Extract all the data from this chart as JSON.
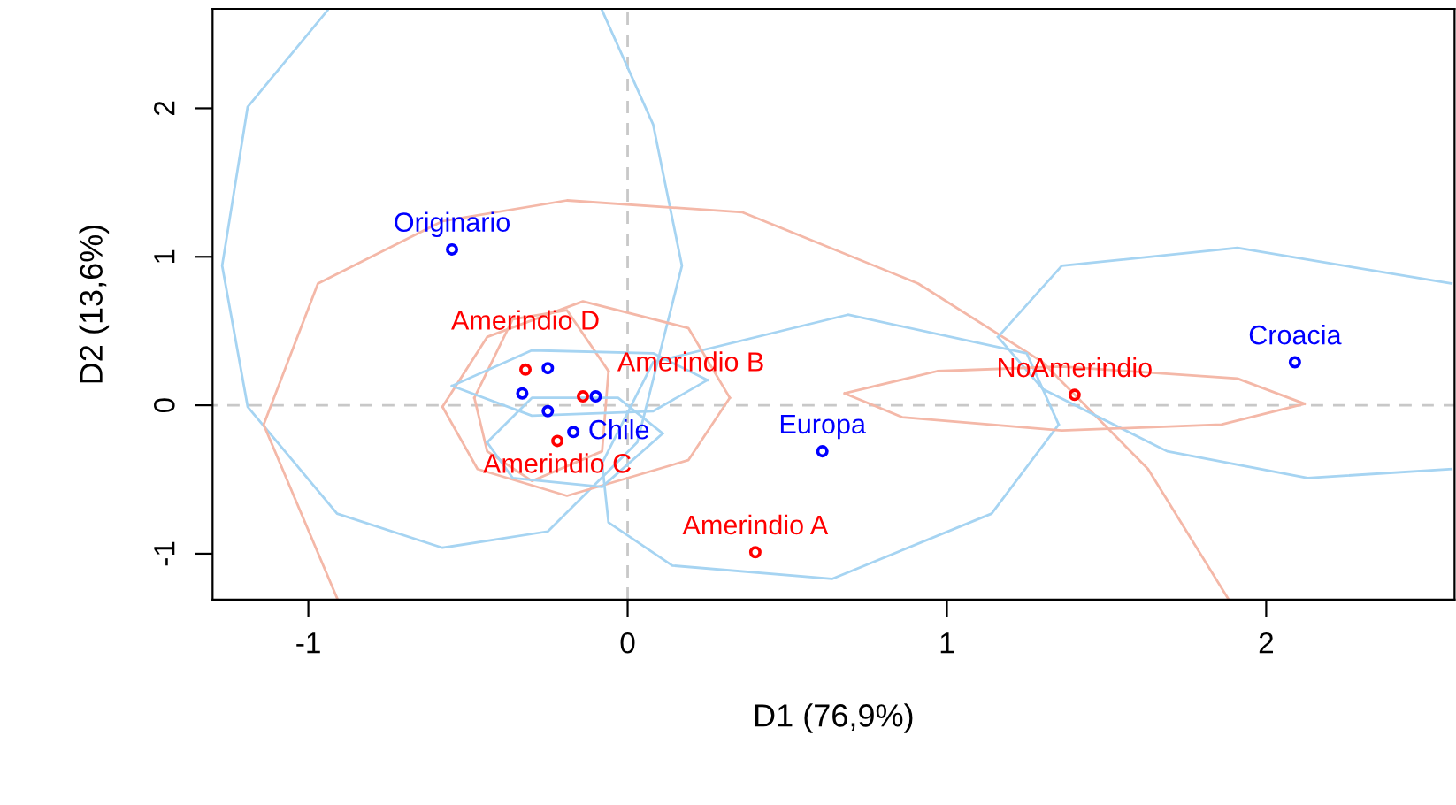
{
  "chart_data": {
    "type": "scatter",
    "xlabel": "D1 (76,9%)",
    "ylabel": "D2 (13,6%)",
    "xlim": [
      -1.3,
      2.59
    ],
    "ylim": [
      -1.31,
      2.67
    ],
    "xticks": [
      -1,
      0,
      1,
      2
    ],
    "yticks": [
      -1,
      0,
      1,
      2
    ],
    "grid": false,
    "marker": "circle",
    "ref_lines": [
      {
        "axis": "x",
        "value": 0,
        "color": "#c8c8c8",
        "line_style": "dashed"
      },
      {
        "axis": "y",
        "value": 0,
        "color": "#c8c8c8",
        "line_style": "dashed"
      }
    ],
    "series": [
      {
        "type": "line",
        "marker": "none",
        "color": "#a6d4f2",
        "x": [
          -0.94,
          -1.19,
          -1.27,
          -1.19,
          -0.91,
          -0.58,
          -0.25,
          0.03,
          0.17,
          0.08,
          -0.08
        ],
        "values": [
          2.66,
          2.01,
          0.94,
          -0.01,
          -0.73,
          -0.96,
          -0.85,
          -0.25,
          0.94,
          1.89,
          2.66
        ]
      },
      {
        "type": "line",
        "marker": "none",
        "color": "#f4b8a8",
        "x": [
          -0.91,
          -1.14,
          -0.97,
          -0.58,
          -0.19,
          0.36,
          0.91,
          1.3,
          1.63,
          1.88
        ],
        "values": [
          -1.3,
          -0.13,
          0.82,
          1.24,
          1.38,
          1.3,
          0.82,
          0.29,
          -0.43,
          -1.3
        ]
      },
      {
        "type": "line",
        "marker": "none",
        "color": "#a6d4f2",
        "x": [
          -0.08,
          0.08,
          0.69,
          1.25,
          1.35
        ],
        "values": [
          -0.39,
          0.29,
          0.61,
          0.35,
          -0.13
        ]
      },
      {
        "type": "line",
        "marker": "none",
        "color": "#a6d4f2",
        "x": [
          -0.08,
          -0.06,
          0.14,
          0.64,
          1.14,
          1.35
        ],
        "values": [
          -0.39,
          -0.79,
          -1.08,
          -1.17,
          -0.73,
          -0.13
        ]
      },
      {
        "type": "line",
        "marker": "none",
        "color": "#a6d4f2",
        "x": [
          1.16,
          1.36,
          1.91,
          2.58
        ],
        "values": [
          0.46,
          0.94,
          1.06,
          0.82
        ]
      },
      {
        "type": "line",
        "marker": "none",
        "color": "#a6d4f2",
        "x": [
          1.16,
          1.3,
          1.69,
          2.13,
          2.58
        ],
        "values": [
          0.46,
          0.11,
          -0.31,
          -0.49,
          -0.43
        ]
      },
      {
        "type": "line",
        "marker": "none",
        "color": "#f4b8a8",
        "x": [
          0.68,
          0.97,
          1.36,
          1.91,
          2.12
        ],
        "values": [
          0.08,
          0.23,
          0.26,
          0.18,
          0.01
        ]
      },
      {
        "type": "line",
        "marker": "none",
        "color": "#f4b8a8",
        "x": [
          0.68,
          0.86,
          1.36,
          1.86,
          2.12
        ],
        "values": [
          0.08,
          -0.08,
          -0.17,
          -0.13,
          0.01
        ]
      },
      {
        "type": "line",
        "marker": "none",
        "color": "#f4b8a8",
        "x": [
          -0.58,
          -0.44,
          -0.14,
          0.19,
          0.32
        ],
        "values": [
          -0.01,
          0.46,
          0.7,
          0.52,
          0.05
        ]
      },
      {
        "type": "line",
        "marker": "none",
        "color": "#f4b8a8",
        "x": [
          -0.58,
          -0.47,
          -0.19,
          0.19,
          0.32
        ],
        "values": [
          -0.01,
          -0.43,
          -0.61,
          -0.37,
          0.05
        ]
      },
      {
        "type": "line",
        "marker": "none",
        "color": "#f4b8a8",
        "x": [
          -0.48,
          -0.36,
          -0.19,
          -0.06
        ],
        "values": [
          0.05,
          0.58,
          0.64,
          0.23
        ]
      },
      {
        "type": "line",
        "marker": "none",
        "color": "#f4b8a8",
        "x": [
          -0.48,
          -0.44,
          -0.3,
          -0.08,
          -0.06
        ],
        "values": [
          0.05,
          -0.31,
          -0.51,
          -0.31,
          0.23
        ]
      },
      {
        "type": "line",
        "marker": "none",
        "color": "#a6d4f2",
        "x": [
          -0.55,
          -0.3,
          0.08,
          0.25
        ],
        "values": [
          0.13,
          0.37,
          0.35,
          0.17
        ]
      },
      {
        "type": "line",
        "marker": "none",
        "color": "#a6d4f2",
        "x": [
          -0.55,
          -0.3,
          0.08,
          0.25
        ],
        "values": [
          0.13,
          -0.07,
          -0.04,
          0.17
        ]
      },
      {
        "type": "line",
        "marker": "none",
        "color": "#a6d4f2",
        "x": [
          -0.44,
          -0.3,
          -0.03,
          0.11
        ],
        "values": [
          -0.25,
          0.05,
          0.05,
          -0.19
        ]
      },
      {
        "type": "line",
        "marker": "none",
        "color": "#a6d4f2",
        "x": [
          -0.44,
          -0.36,
          -0.08,
          0.11
        ],
        "values": [
          -0.25,
          -0.49,
          -0.55,
          -0.19
        ]
      },
      {
        "name": "Originario",
        "color": "#0000ff",
        "x": [
          -0.55
        ],
        "values": [
          1.05
        ]
      },
      {
        "name": "Croacia",
        "color": "#0000ff",
        "x": [
          2.09
        ],
        "values": [
          0.29
        ]
      },
      {
        "name": "Europa",
        "color": "#0000ff",
        "x": [
          0.61
        ],
        "values": [
          -0.31
        ]
      },
      {
        "name": "Chile",
        "color": "#0000ff",
        "x": [
          -0.17
        ],
        "values": [
          -0.18
        ]
      },
      {
        "color": "#0000ff",
        "x": [
          -0.25,
          -0.1,
          -0.33,
          -0.25
        ],
        "values": [
          0.25,
          0.06,
          0.08,
          -0.04
        ]
      },
      {
        "name": "Amerindio A",
        "color": "#ff0000",
        "x": [
          0.4
        ],
        "values": [
          -0.99
        ]
      },
      {
        "name": "NoAmerindio",
        "color": "#ff0000",
        "x": [
          1.4
        ],
        "values": [
          0.07
        ]
      },
      {
        "name": "Amerindio D",
        "color": "#ff0000",
        "x": [
          -0.32
        ],
        "values": [
          0.24
        ]
      },
      {
        "name": "Amerindio B",
        "color": "#ff0000",
        "x": [
          -0.14
        ],
        "values": [
          0.06
        ]
      },
      {
        "name": "Amerindio C",
        "color": "#ff0000",
        "x": [
          -0.22
        ],
        "values": [
          -0.24
        ]
      }
    ]
  }
}
